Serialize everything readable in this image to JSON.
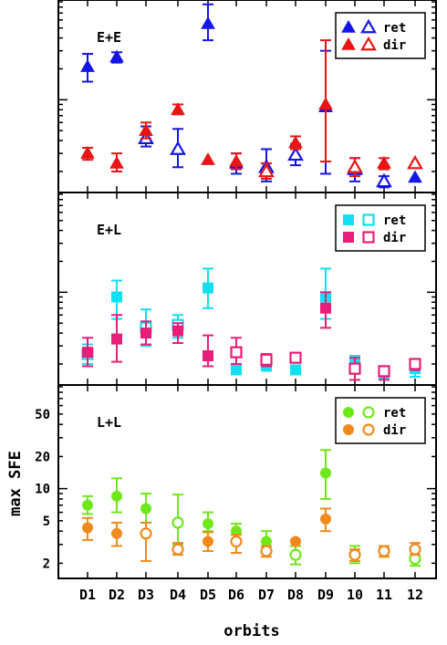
{
  "chart_data": {
    "type": "scatter",
    "xlabel": "orbits",
    "ylabel": "max SFE",
    "categories": [
      "D1",
      "D2",
      "D3",
      "D4",
      "D5",
      "D6",
      "D7",
      "D8",
      "D9",
      "10",
      "11",
      "12"
    ],
    "y_scale": "log",
    "grid": false,
    "legend_labels": {
      "ret": "ret",
      "dir": "dir"
    },
    "panels": [
      {
        "title": "E+E",
        "legend_position": "top-right",
        "ylim": [
          1.3,
          90
        ],
        "yticks": [],
        "colors": {
          "ret": "#1515e8",
          "dir": "#e81515"
        },
        "marker": "triangle",
        "series": [
          {
            "name": "ret",
            "points": [
              {
                "i": 0,
                "y": 21,
                "lo": 15,
                "hi": 28,
                "filled": true
              },
              {
                "i": 1,
                "y": 26,
                "lo": 23,
                "hi": 29,
                "filled": true
              },
              {
                "i": 2,
                "y": 4.2,
                "lo": 3.5,
                "hi": 5.5,
                "filled": false
              },
              {
                "i": 3,
                "y": 3.3,
                "lo": 2.2,
                "hi": 5.2,
                "filled": false
              },
              {
                "i": 4,
                "y": 55,
                "lo": 38,
                "hi": 85,
                "filled": true
              },
              {
                "i": 5,
                "y": 2.4,
                "lo": 1.9,
                "hi": 3.0,
                "filled": true
              },
              {
                "i": 6,
                "y": 2.2,
                "lo": 1.6,
                "hi": 3.3,
                "filled": false
              },
              {
                "i": 7,
                "y": 2.9,
                "lo": 2.3,
                "hi": 3.7,
                "filled": false
              },
              {
                "i": 8,
                "y": 8.5,
                "lo": 1.9,
                "hi": 30,
                "filled": true
              },
              {
                "i": 9,
                "y": 2.1,
                "lo": 1.6,
                "hi": 2.7,
                "filled": false
              },
              {
                "i": 10,
                "y": 1.6,
                "lo": 1.4,
                "hi": 1.8,
                "filled": false
              },
              {
                "i": 11,
                "y": 1.75,
                "lo": 1.75,
                "hi": 1.75,
                "filled": true
              }
            ]
          },
          {
            "name": "dir",
            "points": [
              {
                "i": 0,
                "y": 3.0,
                "lo": 2.6,
                "hi": 3.4,
                "filled": true
              },
              {
                "i": 1,
                "y": 2.4,
                "lo": 2.0,
                "hi": 3.0,
                "filled": true
              },
              {
                "i": 2,
                "y": 5.0,
                "lo": 4.2,
                "hi": 6.0,
                "filled": true
              },
              {
                "i": 3,
                "y": 8.0,
                "lo": 7.2,
                "hi": 9.0,
                "filled": true
              },
              {
                "i": 4,
                "y": 2.6,
                "lo": 2.6,
                "hi": 2.6,
                "filled": true
              },
              {
                "i": 5,
                "y": 2.5,
                "lo": 2.1,
                "hi": 3.0,
                "filled": true
              },
              {
                "i": 6,
                "y": 2.0,
                "lo": 1.7,
                "hi": 2.4,
                "filled": false
              },
              {
                "i": 7,
                "y": 3.8,
                "lo": 3.3,
                "hi": 4.4,
                "filled": true
              },
              {
                "i": 8,
                "y": 9.0,
                "lo": 2.5,
                "hi": 38,
                "filled": true
              },
              {
                "i": 9,
                "y": 2.2,
                "lo": 1.8,
                "hi": 2.7,
                "filled": false
              },
              {
                "i": 10,
                "y": 2.4,
                "lo": 2.1,
                "hi": 2.7,
                "filled": true
              },
              {
                "i": 11,
                "y": 2.4,
                "lo": 2.4,
                "hi": 2.4,
                "filled": false
              }
            ]
          }
        ]
      },
      {
        "title": "E+L",
        "legend_position": "top-right",
        "ylim": [
          1.3,
          90
        ],
        "yticks": [],
        "colors": {
          "ret": "#11dff2",
          "dir": "#e81e78"
        },
        "marker": "square",
        "series": [
          {
            "name": "ret",
            "points": [
              {
                "i": 0,
                "y": 2.5,
                "lo": 2.0,
                "hi": 3.1,
                "filled": false
              },
              {
                "i": 1,
                "y": 9.0,
                "lo": 5.5,
                "hi": 13,
                "filled": true
              },
              {
                "i": 2,
                "y": 4.5,
                "lo": 3.0,
                "hi": 6.8,
                "filled": false
              },
              {
                "i": 3,
                "y": 4.8,
                "lo": 3.6,
                "hi": 6.0,
                "filled": false
              },
              {
                "i": 4,
                "y": 11,
                "lo": 7.0,
                "hi": 17,
                "filled": true
              },
              {
                "i": 5,
                "y": 1.75,
                "lo": 1.75,
                "hi": 1.75,
                "filled": true
              },
              {
                "i": 6,
                "y": 1.9,
                "lo": 1.9,
                "hi": 1.9,
                "filled": true
              },
              {
                "i": 7,
                "y": 1.75,
                "lo": 1.75,
                "hi": 1.75,
                "filled": true
              },
              {
                "i": 8,
                "y": 9.0,
                "lo": 5.5,
                "hi": 17,
                "filled": true
              },
              {
                "i": 9,
                "y": 2.0,
                "lo": 1.6,
                "hi": 2.4,
                "filled": true
              },
              {
                "i": 10,
                "y": 1.6,
                "lo": 1.6,
                "hi": 1.6,
                "filled": true
              },
              {
                "i": 11,
                "y": 1.8,
                "lo": 1.5,
                "hi": 2.1,
                "filled": true
              }
            ]
          },
          {
            "name": "dir",
            "points": [
              {
                "i": 0,
                "y": 2.6,
                "lo": 1.9,
                "hi": 3.6,
                "filled": true
              },
              {
                "i": 1,
                "y": 3.5,
                "lo": 2.1,
                "hi": 6.0,
                "filled": true
              },
              {
                "i": 2,
                "y": 4.0,
                "lo": 3.1,
                "hi": 5.2,
                "filled": true
              },
              {
                "i": 3,
                "y": 4.2,
                "lo": 3.2,
                "hi": 5.0,
                "filled": true
              },
              {
                "i": 4,
                "y": 2.4,
                "lo": 1.9,
                "hi": 3.8,
                "filled": true
              },
              {
                "i": 5,
                "y": 2.6,
                "lo": 2.0,
                "hi": 3.6,
                "filled": false
              },
              {
                "i": 6,
                "y": 2.2,
                "lo": 1.9,
                "hi": 2.5,
                "filled": false
              },
              {
                "i": 7,
                "y": 2.3,
                "lo": 2.3,
                "hi": 2.3,
                "filled": false
              },
              {
                "i": 8,
                "y": 7.0,
                "lo": 4.5,
                "hi": 10,
                "filled": true
              },
              {
                "i": 9,
                "y": 1.8,
                "lo": 1.4,
                "hi": 2.3,
                "filled": false
              },
              {
                "i": 10,
                "y": 1.7,
                "lo": 1.4,
                "hi": 1.9,
                "filled": false
              },
              {
                "i": 11,
                "y": 2.0,
                "lo": 1.75,
                "hi": 2.2,
                "filled": false
              }
            ]
          }
        ]
      },
      {
        "title": "L+L",
        "legend_position": "top-right",
        "ylim": [
          1.5,
          90
        ],
        "yticks": [
          "2",
          "5",
          "10",
          "20",
          "50"
        ],
        "colors": {
          "ret": "#6fe81a",
          "dir": "#f08a1c"
        },
        "marker": "circle",
        "series": [
          {
            "name": "ret",
            "points": [
              {
                "i": 0,
                "y": 7.0,
                "lo": 5.8,
                "hi": 8.5,
                "filled": true
              },
              {
                "i": 1,
                "y": 8.5,
                "lo": 6.0,
                "hi": 12.5,
                "filled": true
              },
              {
                "i": 2,
                "y": 6.5,
                "lo": 4.8,
                "hi": 9.0,
                "filled": true
              },
              {
                "i": 3,
                "y": 4.8,
                "lo": 3.0,
                "hi": 8.8,
                "filled": false
              },
              {
                "i": 4,
                "y": 4.7,
                "lo": 4.0,
                "hi": 6.0,
                "filled": true
              },
              {
                "i": 5,
                "y": 4.0,
                "lo": 3.3,
                "hi": 4.7,
                "filled": true
              },
              {
                "i": 6,
                "y": 3.2,
                "lo": 2.5,
                "hi": 4.0,
                "filled": true
              },
              {
                "i": 7,
                "y": 2.4,
                "lo": 1.95,
                "hi": 2.9,
                "filled": false
              },
              {
                "i": 8,
                "y": 14,
                "lo": 8.0,
                "hi": 23,
                "filled": true
              },
              {
                "i": 9,
                "y": 2.4,
                "lo": 2.0,
                "hi": 2.9,
                "filled": false
              },
              {
                "i": 10,
                "y": 2.6,
                "lo": 2.3,
                "hi": 2.9,
                "filled": true
              },
              {
                "i": 11,
                "y": 2.2,
                "lo": 1.9,
                "hi": 2.6,
                "filled": false
              }
            ]
          },
          {
            "name": "dir",
            "points": [
              {
                "i": 0,
                "y": 4.3,
                "lo": 3.3,
                "hi": 5.3,
                "filled": true
              },
              {
                "i": 1,
                "y": 3.8,
                "lo": 2.9,
                "hi": 4.8,
                "filled": true
              },
              {
                "i": 2,
                "y": 3.8,
                "lo": 2.1,
                "hi": 4.8,
                "filled": false
              },
              {
                "i": 3,
                "y": 2.7,
                "lo": 2.4,
                "hi": 3.1,
                "filled": false
              },
              {
                "i": 4,
                "y": 3.2,
                "lo": 2.6,
                "hi": 3.9,
                "filled": true
              },
              {
                "i": 5,
                "y": 3.2,
                "lo": 2.5,
                "hi": 3.7,
                "filled": false
              },
              {
                "i": 6,
                "y": 2.6,
                "lo": 2.3,
                "hi": 2.9,
                "filled": false
              },
              {
                "i": 7,
                "y": 3.2,
                "lo": 3.2,
                "hi": 3.2,
                "filled": true
              },
              {
                "i": 8,
                "y": 5.2,
                "lo": 4.0,
                "hi": 6.5,
                "filled": true
              },
              {
                "i": 9,
                "y": 2.4,
                "lo": 2.1,
                "hi": 2.7,
                "filled": false
              },
              {
                "i": 10,
                "y": 2.6,
                "lo": 2.3,
                "hi": 2.9,
                "filled": false
              },
              {
                "i": 11,
                "y": 2.7,
                "lo": 2.4,
                "hi": 3.1,
                "filled": false
              }
            ]
          }
        ]
      }
    ]
  }
}
